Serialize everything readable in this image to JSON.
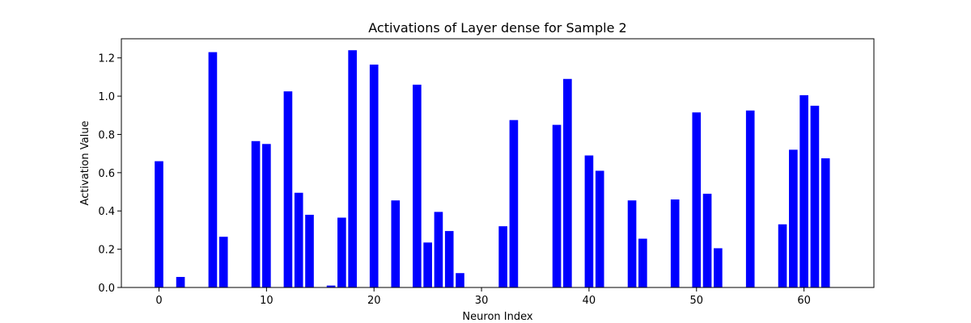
{
  "chart_data": {
    "type": "bar",
    "title": "Activations of Layer dense for Sample 2",
    "xlabel": "Neuron Index",
    "ylabel": "Activation Value",
    "xlim": [
      -3.5,
      66.5
    ],
    "ylim": [
      0,
      1.3
    ],
    "xticks": [
      0,
      10,
      20,
      30,
      40,
      50,
      60
    ],
    "yticks": [
      0.0,
      0.2,
      0.4,
      0.6,
      0.8,
      1.0,
      1.2
    ],
    "xtick_labels": [
      "0",
      "10",
      "20",
      "30",
      "40",
      "50",
      "60"
    ],
    "ytick_labels": [
      "0.0",
      "0.2",
      "0.4",
      "0.6",
      "0.8",
      "1.0",
      "1.2"
    ],
    "bar_color": "#0000ff",
    "grid": false,
    "x": [
      0,
      1,
      2,
      3,
      4,
      5,
      6,
      7,
      8,
      9,
      10,
      11,
      12,
      13,
      14,
      15,
      16,
      17,
      18,
      19,
      20,
      21,
      22,
      23,
      24,
      25,
      26,
      27,
      28,
      29,
      30,
      31,
      32,
      33,
      34,
      35,
      36,
      37,
      38,
      39,
      40,
      41,
      42,
      43,
      44,
      45,
      46,
      47,
      48,
      49,
      50,
      51,
      52,
      53,
      54,
      55,
      56,
      57,
      58,
      59,
      60,
      61,
      62
    ],
    "values": [
      0.66,
      0,
      0.055,
      0,
      0,
      1.23,
      0.265,
      0,
      0,
      0.765,
      0.75,
      0,
      1.025,
      0.495,
      0.38,
      0,
      0.01,
      0.365,
      1.24,
      0,
      1.165,
      0,
      0.455,
      0,
      1.06,
      0.235,
      0.395,
      0.295,
      0.075,
      0,
      0,
      0,
      0.32,
      0.875,
      0,
      0,
      0,
      0.85,
      1.09,
      0,
      0.69,
      0.61,
      0,
      0,
      0.455,
      0.255,
      0,
      0,
      0.46,
      0,
      0.915,
      0.49,
      0.205,
      0,
      0,
      0.925,
      0,
      0,
      0.33,
      0.72,
      1.005,
      0.95,
      0.675
    ]
  }
}
